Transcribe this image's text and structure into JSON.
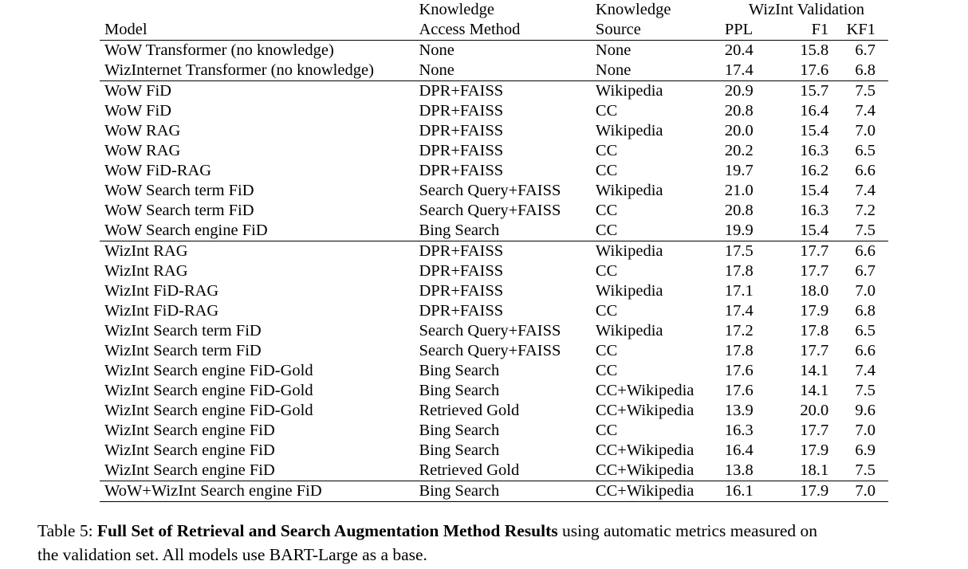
{
  "table": {
    "header": {
      "model": "Model",
      "method_line1": "Knowledge",
      "method_line2": "Access Method",
      "source_line1": "Knowledge",
      "source_line2": "Source",
      "group": "WizInt Validation",
      "ppl": "PPL",
      "f1": "F1",
      "kf1": "KF1"
    },
    "groups": [
      [
        [
          "WoW Transformer (no knowledge)",
          "None",
          "None",
          "20.4",
          "15.8",
          "6.7"
        ],
        [
          "WizInternet Transformer (no knowledge)",
          "None",
          "None",
          "17.4",
          "17.6",
          "6.8"
        ]
      ],
      [
        [
          "WoW FiD",
          "DPR+FAISS",
          "Wikipedia",
          "20.9",
          "15.7",
          "7.5"
        ],
        [
          "WoW FiD",
          "DPR+FAISS",
          "CC",
          "20.8",
          "16.4",
          "7.4"
        ],
        [
          "WoW RAG",
          "DPR+FAISS",
          "Wikipedia",
          "20.0",
          "15.4",
          "7.0"
        ],
        [
          "WoW RAG",
          "DPR+FAISS",
          "CC",
          "20.2",
          "16.3",
          "6.5"
        ],
        [
          "WoW FiD-RAG",
          "DPR+FAISS",
          "CC",
          "19.7",
          "16.2",
          "6.6"
        ],
        [
          "WoW Search term FiD",
          "Search Query+FAISS",
          "Wikipedia",
          "21.0",
          "15.4",
          "7.4"
        ],
        [
          "WoW Search term FiD",
          "Search Query+FAISS",
          "CC",
          "20.8",
          "16.3",
          "7.2"
        ],
        [
          "WoW Search engine FiD",
          "Bing Search",
          "CC",
          "19.9",
          "15.4",
          "7.5"
        ]
      ],
      [
        [
          "WizInt RAG",
          "DPR+FAISS",
          "Wikipedia",
          "17.5",
          "17.7",
          "6.6"
        ],
        [
          "WizInt RAG",
          "DPR+FAISS",
          "CC",
          "17.8",
          "17.7",
          "6.7"
        ],
        [
          "WizInt FiD-RAG",
          "DPR+FAISS",
          "Wikipedia",
          "17.1",
          "18.0",
          "7.0"
        ],
        [
          "WizInt FiD-RAG",
          "DPR+FAISS",
          "CC",
          "17.4",
          "17.9",
          "6.8"
        ],
        [
          "WizInt Search term FiD",
          "Search Query+FAISS",
          "Wikipedia",
          "17.2",
          "17.8",
          "6.5"
        ],
        [
          "WizInt Search term FiD",
          "Search Query+FAISS",
          "CC",
          "17.8",
          "17.7",
          "6.6"
        ],
        [
          "WizInt Search engine FiD-Gold",
          "Bing Search",
          "CC",
          "17.6",
          "14.1",
          "7.4"
        ],
        [
          "WizInt Search engine FiD-Gold",
          "Bing Search",
          "CC+Wikipedia",
          "17.6",
          "14.1",
          "7.5"
        ],
        [
          "WizInt Search engine FiD-Gold",
          "Retrieved Gold",
          "CC+Wikipedia",
          "13.9",
          "20.0",
          "9.6"
        ],
        [
          "WizInt Search engine FiD",
          "Bing Search",
          "CC",
          "16.3",
          "17.7",
          "7.0"
        ],
        [
          "WizInt Search engine FiD",
          "Bing Search",
          "CC+Wikipedia",
          "16.4",
          "17.9",
          "6.9"
        ],
        [
          "WizInt Search engine FiD",
          "Retrieved Gold",
          "CC+Wikipedia",
          "13.8",
          "18.1",
          "7.5"
        ]
      ],
      [
        [
          "WoW+WizInt Search engine FiD",
          "Bing Search",
          "CC+Wikipedia",
          "16.1",
          "17.9",
          "7.0"
        ]
      ]
    ]
  },
  "caption": {
    "label": "Table 5:",
    "title": "Full Set of Retrieval and Search Augmentation Method Results",
    "text_line1": "using automatic metrics measured on",
    "text_line2": "the validation set. All models use BART-Large as a base."
  }
}
